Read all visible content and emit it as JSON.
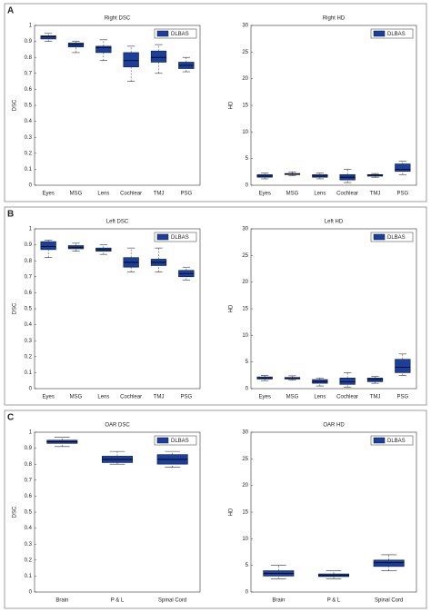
{
  "panels": [
    {
      "label": "A"
    },
    {
      "label": "B"
    },
    {
      "label": "C"
    }
  ],
  "chart_data": [
    {
      "type": "box",
      "title": "Right DSC",
      "ylabel": "DSC",
      "categories": [
        "Eyes",
        "MSG",
        "Lens",
        "Cochlear",
        "TMJ",
        "PSG"
      ],
      "series": [
        {
          "name": "DLBAS",
          "color": "#1c3f9a",
          "values": [
            {
              "whislo": 0.9,
              "q1": 0.915,
              "med": 0.93,
              "q3": 0.935,
              "whishi": 0.95
            },
            {
              "whislo": 0.83,
              "q1": 0.865,
              "med": 0.88,
              "q3": 0.89,
              "whishi": 0.9
            },
            {
              "whislo": 0.78,
              "q1": 0.83,
              "med": 0.86,
              "q3": 0.87,
              "whishi": 0.91
            },
            {
              "whislo": 0.65,
              "q1": 0.74,
              "med": 0.78,
              "q3": 0.83,
              "whishi": 0.87
            },
            {
              "whislo": 0.7,
              "q1": 0.77,
              "med": 0.8,
              "q3": 0.84,
              "whishi": 0.88
            },
            {
              "whislo": 0.71,
              "q1": 0.73,
              "med": 0.75,
              "q3": 0.77,
              "whishi": 0.8
            }
          ]
        }
      ],
      "ylim": [
        0,
        1
      ],
      "yticks": [
        0,
        0.1,
        0.2,
        0.3,
        0.4,
        0.5,
        0.6,
        0.7,
        0.8,
        0.9,
        1
      ],
      "legend": "northeast"
    },
    {
      "type": "box",
      "title": "Right HD",
      "ylabel": "HD",
      "categories": [
        "Eyes",
        "MSG",
        "Lens",
        "Cochlear",
        "TMJ",
        "PSG"
      ],
      "series": [
        {
          "name": "DLBAS",
          "color": "#1c3f9a",
          "values": [
            {
              "whislo": 1.2,
              "q1": 1.5,
              "med": 1.7,
              "q3": 2.0,
              "whishi": 2.3
            },
            {
              "whislo": 1.8,
              "q1": 2.0,
              "med": 2.1,
              "q3": 2.2,
              "whishi": 2.5
            },
            {
              "whislo": 1.2,
              "q1": 1.5,
              "med": 1.7,
              "q3": 2.0,
              "whishi": 2.3
            },
            {
              "whislo": 0.5,
              "q1": 1.0,
              "med": 1.5,
              "q3": 2.0,
              "whishi": 3.0
            },
            {
              "whislo": 1.5,
              "q1": 1.7,
              "med": 1.9,
              "q3": 2.0,
              "whishi": 2.2
            },
            {
              "whislo": 2.0,
              "q1": 2.6,
              "med": 3.0,
              "q3": 4.0,
              "whishi": 4.5
            }
          ]
        }
      ],
      "ylim": [
        0,
        30
      ],
      "yticks": [
        0,
        5,
        10,
        15,
        20,
        25,
        30
      ],
      "legend": "northeast"
    },
    {
      "type": "box",
      "title": "Left DSC",
      "ylabel": "DSC",
      "categories": [
        "Eyes",
        "MSG",
        "Lens",
        "Cochlear",
        "TMJ",
        "PSG"
      ],
      "series": [
        {
          "name": "DLBAS",
          "color": "#1c3f9a",
          "values": [
            {
              "whislo": 0.82,
              "q1": 0.87,
              "med": 0.89,
              "q3": 0.92,
              "whishi": 0.93
            },
            {
              "whislo": 0.86,
              "q1": 0.875,
              "med": 0.885,
              "q3": 0.895,
              "whishi": 0.91
            },
            {
              "whislo": 0.84,
              "q1": 0.86,
              "med": 0.87,
              "q3": 0.88,
              "whishi": 0.9
            },
            {
              "whislo": 0.73,
              "q1": 0.76,
              "med": 0.79,
              "q3": 0.82,
              "whishi": 0.88
            },
            {
              "whislo": 0.73,
              "q1": 0.77,
              "med": 0.79,
              "q3": 0.81,
              "whishi": 0.88
            },
            {
              "whislo": 0.68,
              "q1": 0.7,
              "med": 0.72,
              "q3": 0.74,
              "whishi": 0.76
            }
          ]
        }
      ],
      "ylim": [
        0,
        1
      ],
      "yticks": [
        0,
        0.1,
        0.2,
        0.3,
        0.4,
        0.5,
        0.6,
        0.7,
        0.8,
        0.9,
        1
      ],
      "legend": "northeast"
    },
    {
      "type": "box",
      "title": "Left HD",
      "ylabel": "HD",
      "categories": [
        "Eyes",
        "MSG",
        "Lens",
        "Cochlear",
        "TMJ",
        "PSG"
      ],
      "series": [
        {
          "name": "DLBAS",
          "color": "#1c3f9a",
          "values": [
            {
              "whislo": 1.5,
              "q1": 1.8,
              "med": 2.0,
              "q3": 2.2,
              "whishi": 2.5
            },
            {
              "whislo": 1.6,
              "q1": 1.8,
              "med": 2.0,
              "q3": 2.1,
              "whishi": 2.4
            },
            {
              "whislo": 0.5,
              "q1": 1.0,
              "med": 1.3,
              "q3": 1.7,
              "whishi": 2.0
            },
            {
              "whislo": 0.3,
              "q1": 0.8,
              "med": 1.3,
              "q3": 2.0,
              "whishi": 3.0
            },
            {
              "whislo": 1.0,
              "q1": 1.3,
              "med": 1.7,
              "q3": 2.0,
              "whishi": 2.3
            },
            {
              "whislo": 2.5,
              "q1": 3.0,
              "med": 4.0,
              "q3": 5.5,
              "whishi": 6.5
            }
          ]
        }
      ],
      "ylim": [
        0,
        30
      ],
      "yticks": [
        0,
        5,
        10,
        15,
        20,
        25,
        30
      ],
      "legend": "northeast"
    },
    {
      "type": "box",
      "title": "OAR DSC",
      "ylabel": "DSC",
      "categories": [
        "Brain",
        "P & L",
        "Spinal Cord"
      ],
      "series": [
        {
          "name": "DLBAS",
          "color": "#1c3f9a",
          "values": [
            {
              "whislo": 0.91,
              "q1": 0.93,
              "med": 0.94,
              "q3": 0.95,
              "whishi": 0.97
            },
            {
              "whislo": 0.8,
              "q1": 0.81,
              "med": 0.83,
              "q3": 0.85,
              "whishi": 0.88
            },
            {
              "whislo": 0.78,
              "q1": 0.8,
              "med": 0.83,
              "q3": 0.86,
              "whishi": 0.88
            }
          ]
        }
      ],
      "ylim": [
        0,
        1
      ],
      "yticks": [
        0,
        0.1,
        0.2,
        0.3,
        0.4,
        0.5,
        0.6,
        0.7,
        0.8,
        0.9,
        1
      ],
      "legend": "northeast"
    },
    {
      "type": "box",
      "title": "OAR HD",
      "ylabel": "HD",
      "categories": [
        "Brain",
        "P & L",
        "Spinal Cord"
      ],
      "series": [
        {
          "name": "DLBAS",
          "color": "#1c3f9a",
          "values": [
            {
              "whislo": 2.5,
              "q1": 3.0,
              "med": 3.5,
              "q3": 4.0,
              "whishi": 5.0
            },
            {
              "whislo": 2.5,
              "q1": 2.9,
              "med": 3.1,
              "q3": 3.4,
              "whishi": 4.0
            },
            {
              "whislo": 4.0,
              "q1": 4.8,
              "med": 5.5,
              "q3": 6.0,
              "whishi": 7.0
            }
          ]
        }
      ],
      "ylim": [
        0,
        30
      ],
      "yticks": [
        0,
        5,
        10,
        15,
        20,
        25,
        30
      ],
      "legend": "northeast"
    }
  ]
}
